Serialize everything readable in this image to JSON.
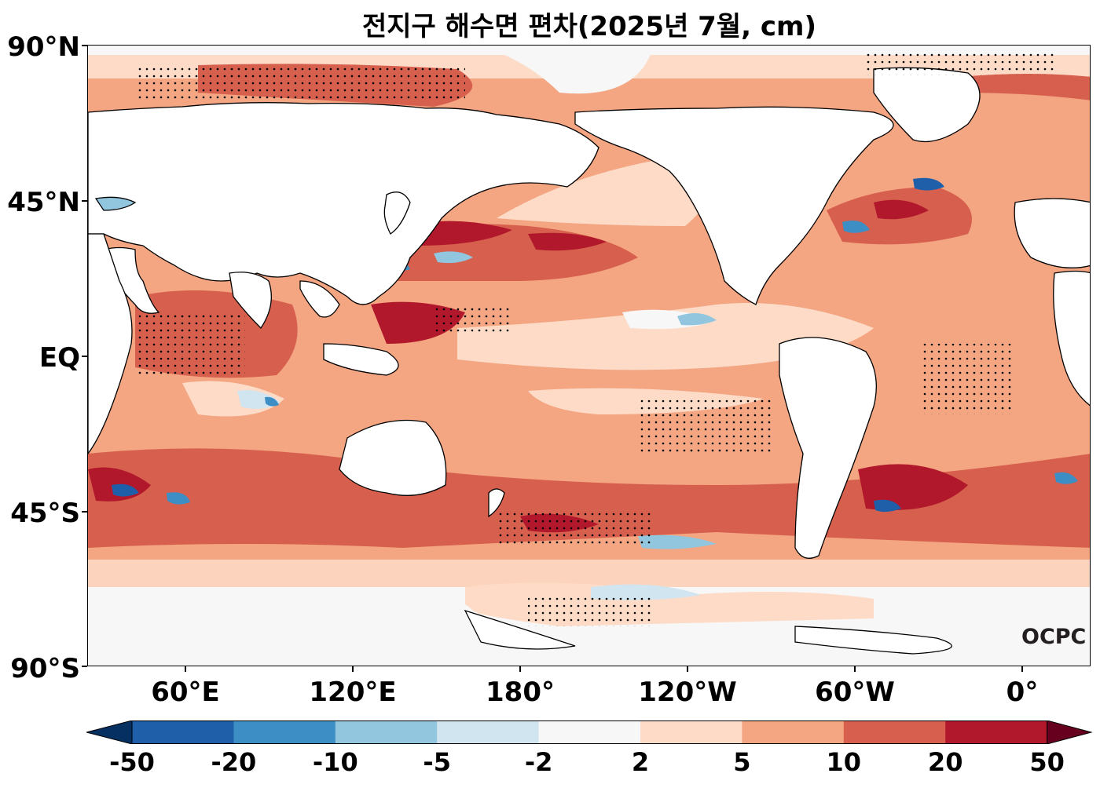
{
  "title": "전지구 해수면 편차(2025년 7월, cm)",
  "latitude_labels": [
    "90°N",
    "45°N",
    "EQ",
    "45°S",
    "90°S"
  ],
  "longitude_labels": [
    "60°E",
    "120°E",
    "180°",
    "120°W",
    "60°W",
    "0°"
  ],
  "colorbar": {
    "labels": [
      "-50",
      "-20",
      "-10",
      "-5",
      "-2",
      "2",
      "5",
      "10",
      "20",
      "50"
    ],
    "colors": [
      "#1f5ea8",
      "#3d8ec4",
      "#92c5de",
      "#d1e5f0",
      "#f7f7f7",
      "#fddbc7",
      "#f4a582",
      "#d6604d",
      "#b2182b"
    ],
    "extend_low_color": "#053061",
    "extend_high_color": "#67001f"
  },
  "logo_text": "OCPC",
  "land_color": "#ffffff",
  "ocean_background_color": "#f4a582"
}
